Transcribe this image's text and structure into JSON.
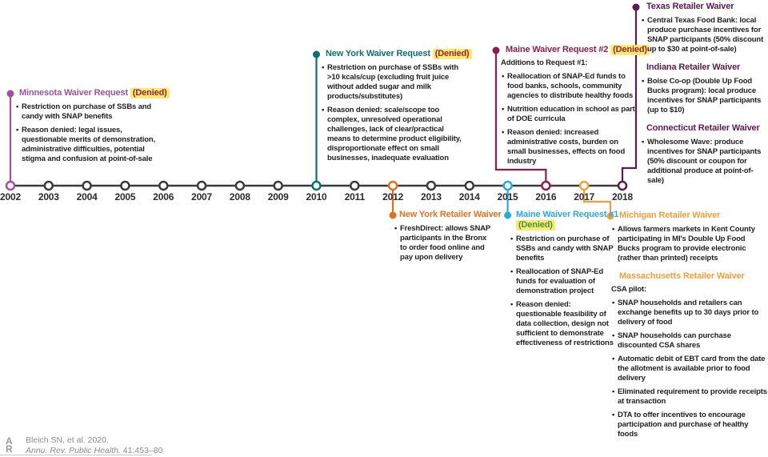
{
  "colors": {
    "timeline": "#3A3A3A",
    "minnesota": "#A1509E",
    "new_york_waiver": "#0E6F6F",
    "maine_2": "#8E1C4C",
    "texas_group": "#5E1A4F",
    "new_york_retailer": "#E2711D",
    "maine_1": "#2AA9DF",
    "michigan_group": "#EFA03D",
    "denied_bg": "#F6EC70",
    "denied_text": "#A21D3B",
    "denied_text_alt": "#4E8F3C",
    "body_text": "#1F1F1F",
    "year_text": "#2B2B2B",
    "citation_text": "#8C8C8C"
  },
  "timeline": {
    "years": [
      "2002",
      "2003",
      "2004",
      "2005",
      "2006",
      "2007",
      "2008",
      "2009",
      "2010",
      "2011",
      "2012",
      "2013",
      "2014",
      "2015",
      "2016",
      "2017",
      "2018"
    ]
  },
  "events": {
    "minnesota": {
      "title": "Minnesota Waiver Request",
      "denied": "(Denied)",
      "bullets": [
        "Restriction on purchase of SSBs and candy with SNAP benefits",
        "Reason denied: legal issues, questionable merits of demonstration, administrative difficulties, potential stigma and confusion at point-of-sale"
      ]
    },
    "new_york_waiver": {
      "title": "New York Waiver Request",
      "denied": "(Denied)",
      "bullets": [
        "Restriction on purchase of SSBs with >10 kcals/cup (excluding fruit juice without added sugar and milk products/substitutes)",
        "Reason denied: scale/scope too complex, unresolved operational challenges, lack of clear/practical means to determine product eligibility, disproportionate effect on small businesses, inadequate evaluation"
      ]
    },
    "maine_2": {
      "title": "Maine Waiver Request #2",
      "denied": "(Denied)",
      "intro": "Additions to Request #1:",
      "bullets": [
        "Reallocation of SNAP-Ed funds to food banks, schools, community agencies to distribute healthy foods",
        "Nutrition education in school as part of DOE curricula",
        "Reason denied: increased administrative costs, burden on small businesses, effects on food industry"
      ]
    },
    "texas": {
      "title": "Texas Retailer Waiver",
      "bullets": [
        "Central Texas Food Bank: local produce purchase incentives for SNAP participants (50% discount up to $30 at point-of-sale)"
      ]
    },
    "indiana": {
      "title": "Indiana Retailer Waiver",
      "bullets": [
        "Boise Co-op (Double Up Food Bucks program): local produce incentives for SNAP participants (up to $10)"
      ]
    },
    "connecticut": {
      "title": "Connecticut Retailer Waiver",
      "bullets": [
        "Wholesome Wave: produce incentives for SNAP participants (50% discount or coupon for additional produce at point-of-sale)"
      ]
    },
    "new_york_retailer": {
      "title": "New York Retailer Waiver",
      "bullets": [
        "FreshDirect: allows SNAP participants in the Bronx to order food online and pay upon delivery"
      ]
    },
    "maine_1": {
      "title": "Maine Waiver Request #1",
      "denied": "(Denied)",
      "bullets": [
        "Restriction on purchase of SSBs and candy with SNAP benefits",
        "Reallocation of SNAP-Ed funds for evaluation of demonstration project",
        "Reason denied: questionable feasibility of data collection, design not sufficient to demonstrate effectiveness of restrictions"
      ]
    },
    "michigan": {
      "title": "Michigan Retailer Waiver",
      "bullets": [
        "Allows farmers markets in Kent County participating in MI's Double Up Food Bucks program to provide electronic (rather than printed) receipts"
      ]
    },
    "massachusetts": {
      "title": "Massachusetts Retailer Waiver",
      "intro": "CSA pilot:",
      "bullets": [
        "SNAP households and retailers can exchange benefits up to 30 days prior to delivery of food",
        "SNAP households can purchase discounted CSA shares",
        "Automatic debit of EBT card from the date the allotment is available prior to food delivery",
        "Eliminated requirement to provide receipts at transaction",
        "DTA to offer incentives to encourage participation and purchase of healthy foods"
      ]
    }
  },
  "citation": {
    "line1": "Bleich SN, et al. 2020.",
    "journal": "Annu. Rev. Public Health.",
    "volume_pages": " 41:453–80",
    "logo_top": "A",
    "logo_bottom": "R"
  }
}
